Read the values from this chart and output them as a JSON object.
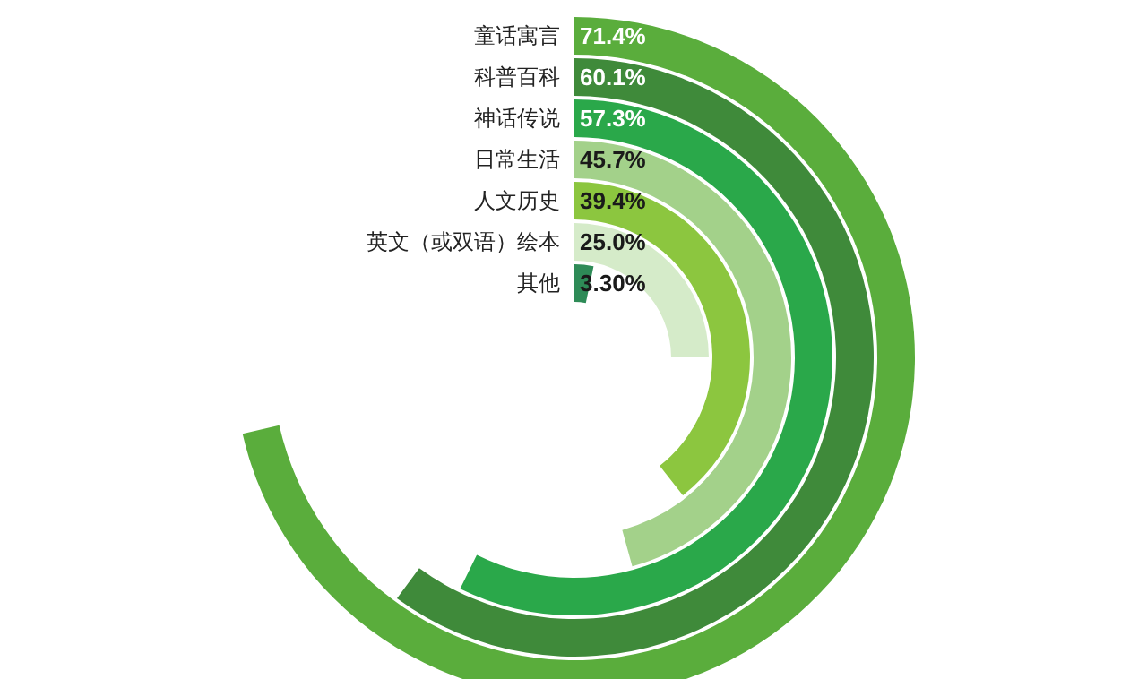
{
  "chart_data": {
    "type": "other",
    "categories": [
      "童话寓言",
      "科普百科",
      "神话传说",
      "日常生活",
      "人文历史",
      "英文（或双语）绘本",
      "其他"
    ],
    "values": [
      71.4,
      60.1,
      57.3,
      45.7,
      39.4,
      25.0,
      3.3
    ],
    "colors": [
      "#5aad3c",
      "#3f8a3a",
      "#2aa84a",
      "#a3d18a",
      "#8cc63f",
      "#d5ebc9",
      "#2e8b57"
    ],
    "value_labels": [
      "71.4%",
      "60.1%",
      "57.3%",
      "45.7%",
      "39.4%",
      "25.0%",
      "3.30%"
    ]
  }
}
